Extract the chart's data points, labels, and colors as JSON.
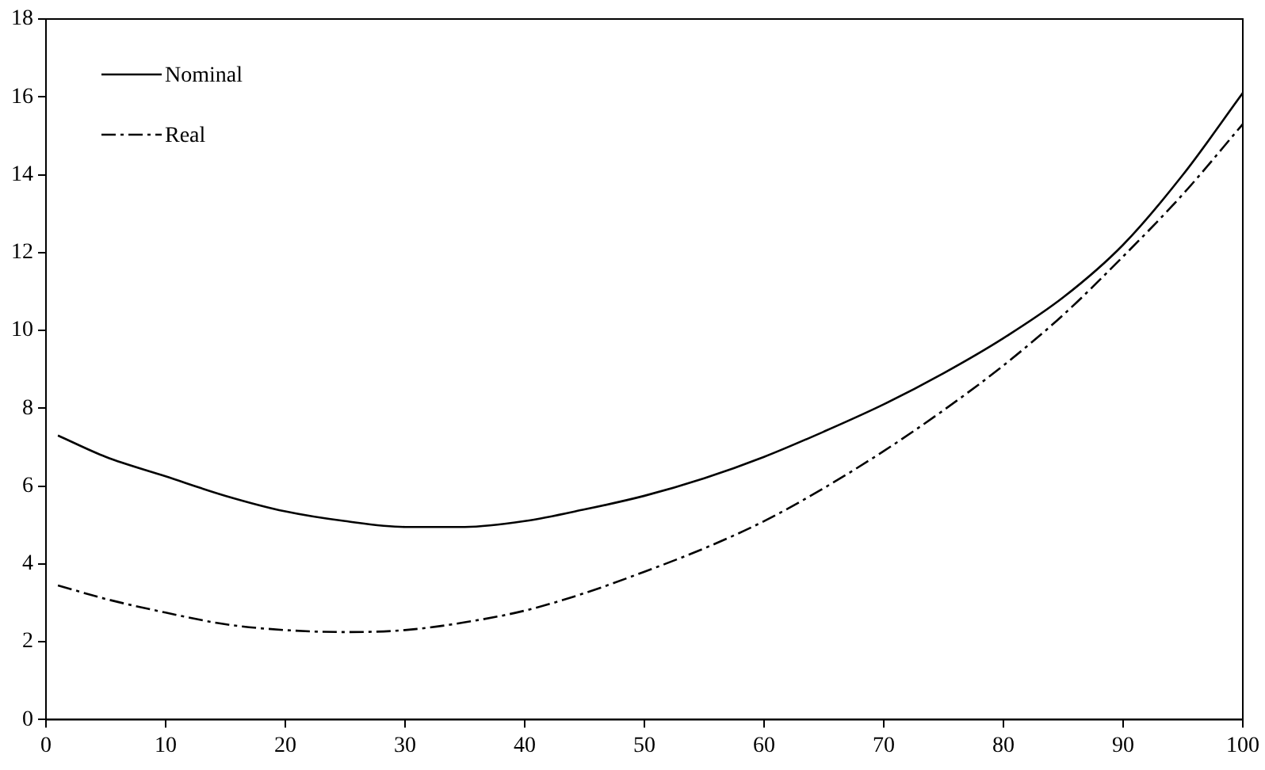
{
  "chart_data": {
    "type": "line",
    "x": [
      1,
      5,
      10,
      15,
      20,
      25,
      30,
      35,
      40,
      45,
      50,
      55,
      60,
      65,
      70,
      75,
      80,
      85,
      90,
      95,
      100
    ],
    "series": [
      {
        "name": "Nominal",
        "color": "#000000",
        "line_style": "solid",
        "values": [
          7.3,
          6.75,
          6.25,
          5.75,
          5.35,
          5.1,
          4.95,
          4.95,
          5.1,
          5.4,
          5.75,
          6.2,
          6.75,
          7.4,
          8.1,
          8.9,
          9.8,
          10.85,
          12.2,
          14.0,
          16.1
        ]
      },
      {
        "name": "Real",
        "color": "#000000",
        "line_style": "dashed",
        "values": [
          3.45,
          3.1,
          2.75,
          2.45,
          2.3,
          2.25,
          2.3,
          2.5,
          2.8,
          3.25,
          3.8,
          4.4,
          5.1,
          5.95,
          6.9,
          7.95,
          9.1,
          10.4,
          11.9,
          13.5,
          15.3
        ]
      }
    ],
    "xlim": [
      0,
      100
    ],
    "xticks": [
      0,
      10,
      20,
      30,
      40,
      50,
      60,
      70,
      80,
      90,
      100
    ],
    "ylim": [
      0,
      18
    ],
    "yticks": [
      0,
      2,
      4,
      6,
      8,
      10,
      12,
      14,
      16,
      18
    ],
    "grid": false,
    "legend": "top left",
    "marker": "none"
  }
}
